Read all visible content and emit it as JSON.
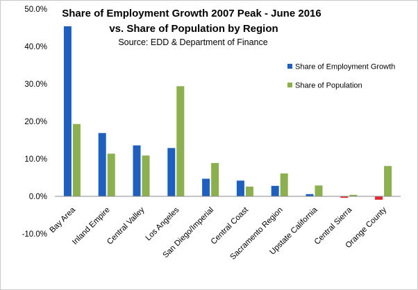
{
  "chart_data": {
    "type": "bar",
    "title_line1": "Share of Employment Growth 2007 Peak - June 2016",
    "title_line2": "vs. Share of Population by Region",
    "subtitle": "Source:  EDD & Department of Finance",
    "categories": [
      "Bay Area",
      "Inland Empire",
      "Central Valley",
      "Los Angeles",
      "San Diego/Imperial",
      "Central Coast",
      "Sacramento Region",
      "Upstate California",
      "Central Sierra",
      "Orange County"
    ],
    "series": [
      {
        "name": "Share of Employment Growth",
        "color": "#1f5fbf",
        "negative_color": "#e8232b",
        "values": [
          45.4,
          16.9,
          13.6,
          12.9,
          4.7,
          4.2,
          2.8,
          0.6,
          -0.4,
          -0.9
        ]
      },
      {
        "name": "Share of Population",
        "color": "#8db04f",
        "values": [
          19.3,
          11.4,
          10.9,
          29.4,
          8.9,
          2.6,
          6.1,
          2.9,
          0.4,
          8.1
        ]
      }
    ],
    "yticks": [
      "50.0%",
      "40.0%",
      "30.0%",
      "20.0%",
      "10.0%",
      "0.0%",
      "-10.0%"
    ],
    "ytick_values": [
      50,
      40,
      30,
      20,
      10,
      0,
      -10
    ],
    "ylim": [
      -10,
      50
    ],
    "xlabel": "",
    "ylabel": "",
    "legend_position": "right"
  }
}
